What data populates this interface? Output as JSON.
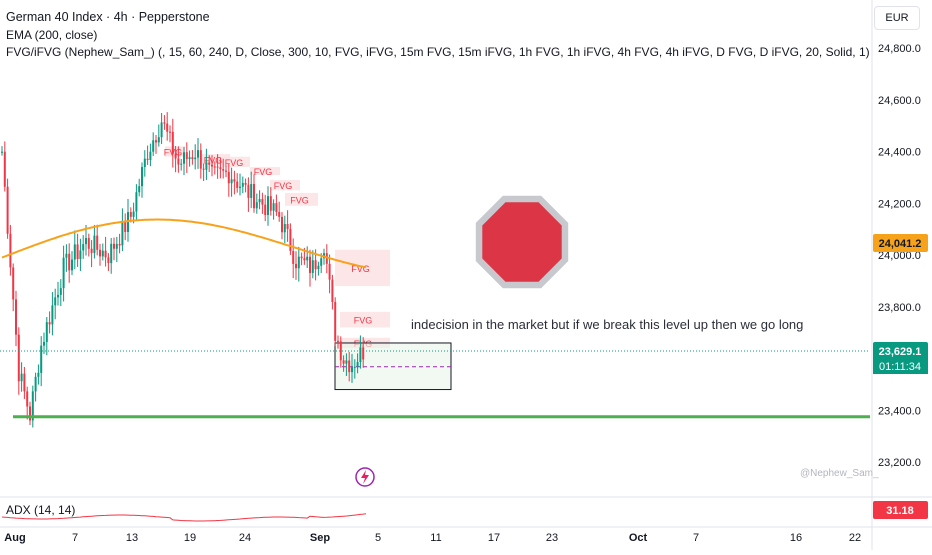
{
  "header": {
    "title": "German 40 Index · 4h · Pepperstone",
    "ema_label": "EMA (200, close)",
    "fvg_label": "FVG/iFVG (Nephew_Sam_) (, 15, 60, 240, D, Close, 300, 10, FVG, iFVG, 15m FVG, 15m iFVG, 1h FVG, 1h iFVG, 4h FVG, 4h iFVG, D FVG, D iFVG, 20, Solid, 1)"
  },
  "currency": "EUR",
  "annotation": "indecision in the market but if we break this level up then we go long",
  "watermark": "@Nephew_Sam_",
  "fvg_tag": "FVG",
  "price_labels": {
    "ema": "24,041.2",
    "last": "23,629.1",
    "countdown": "01:11:34",
    "adx": "31.18"
  },
  "adx_label": "ADX (14, 14)",
  "colors": {
    "up": "#089981",
    "down": "#f23645",
    "ema": "#f7a21b",
    "level": "#4caf50",
    "fvg_fill": "#fde2e4",
    "fvg_text": "#f23645",
    "stop_sign": "#dc3545",
    "adx_line": "#f23645"
  },
  "chart_data": {
    "type": "candlestick",
    "symbol": "German 40 Index",
    "timeframe": "4h",
    "ylim": [
      23100,
      24900
    ],
    "y_ticks": [
      "24,800.0",
      "24,600.0",
      "24,400.0",
      "24,200.0",
      "24,000.0",
      "23,800.0",
      "23,600.0",
      "23,400.0",
      "23,200.0"
    ],
    "x_ticks": [
      "Aug",
      "7",
      "13",
      "19",
      "24",
      "Sep",
      "5",
      "11",
      "17",
      "23",
      "Oct",
      "7",
      "16",
      "22"
    ],
    "anchors": [
      {
        "i": 0,
        "p": 24400
      },
      {
        "i": 6,
        "p": 23550
      },
      {
        "i": 10,
        "p": 23380
      },
      {
        "i": 14,
        "p": 23650
      },
      {
        "i": 22,
        "p": 23950
      },
      {
        "i": 30,
        "p": 24050
      },
      {
        "i": 38,
        "p": 24000
      },
      {
        "i": 46,
        "p": 24150
      },
      {
        "i": 52,
        "p": 24400
      },
      {
        "i": 57,
        "p": 24520
      },
      {
        "i": 63,
        "p": 24350
      },
      {
        "i": 69,
        "p": 24400
      },
      {
        "i": 75,
        "p": 24300
      },
      {
        "i": 81,
        "p": 24320
      },
      {
        "i": 87,
        "p": 24250
      },
      {
        "i": 93,
        "p": 24200
      },
      {
        "i": 99,
        "p": 24150
      },
      {
        "i": 105,
        "p": 23980
      },
      {
        "i": 111,
        "p": 23950
      },
      {
        "i": 115,
        "p": 24050
      },
      {
        "i": 119,
        "p": 23700
      },
      {
        "i": 122,
        "p": 23600
      },
      {
        "i": 125,
        "p": 23580
      },
      {
        "i": 129,
        "p": 23629
      }
    ],
    "ema200": {
      "label": "EMA (200, close)",
      "start": 23990,
      "mid": 24100,
      "end": 24041
    },
    "support_level": 23375,
    "consolidation_box": [
      23480,
      23660
    ],
    "dashed_level": 23568,
    "fvg_zones": [
      {
        "lo": 24380,
        "hi": 24420,
        "tag": true
      },
      {
        "lo": 24350,
        "hi": 24390,
        "tag": true
      },
      {
        "lo": 24340,
        "hi": 24380,
        "tag": true
      },
      {
        "lo": 24310,
        "hi": 24340,
        "tag": true
      },
      {
        "lo": 24250,
        "hi": 24290,
        "tag": true
      },
      {
        "lo": 24190,
        "hi": 24240,
        "tag": true
      },
      {
        "lo": 23880,
        "hi": 24020,
        "tag": true
      },
      {
        "lo": 23720,
        "hi": 23780,
        "tag": true
      },
      {
        "lo": 23640,
        "hi": 23680,
        "tag": true
      }
    ],
    "adx": {
      "label": "ADX (14, 14)",
      "last": 31.18
    }
  }
}
